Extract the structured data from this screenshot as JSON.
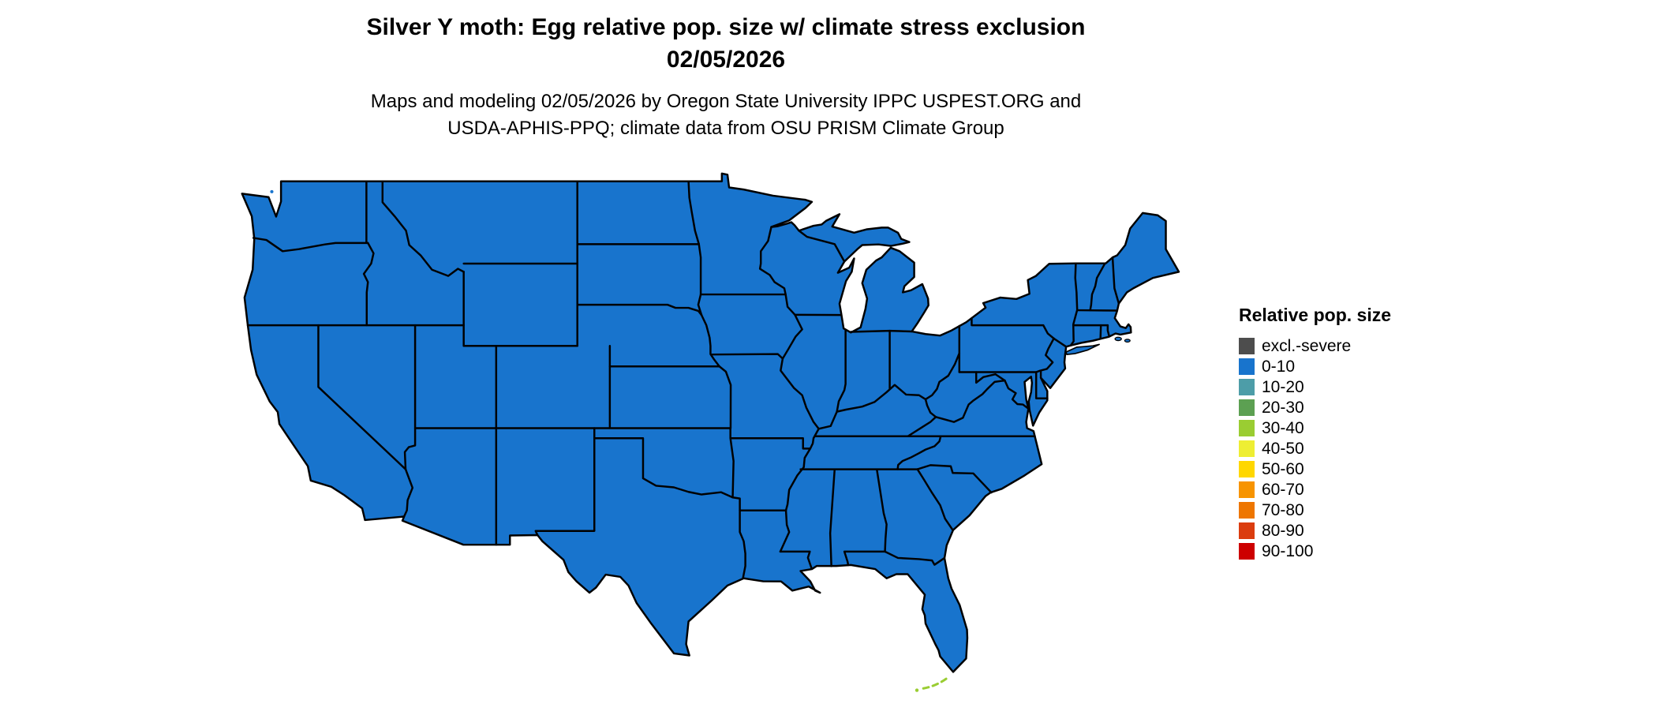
{
  "title": {
    "line1": "Silver Y moth: Egg relative pop. size w/ climate stress exclusion",
    "line2": "02/05/2026"
  },
  "subtitle": {
    "line1": "Maps and modeling 02/05/2026 by Oregon State University IPPC USPEST.ORG and",
    "line2": "USDA-APHIS-PPQ; climate data from OSU PRISM Climate Group"
  },
  "legend": {
    "title": "Relative pop. size",
    "items": [
      {
        "label": "excl.-severe",
        "color": "#4D4D4D"
      },
      {
        "label": "0-10",
        "color": "#1874CD"
      },
      {
        "label": "10-20",
        "color": "#4D9DA8"
      },
      {
        "label": "20-30",
        "color": "#5CA052"
      },
      {
        "label": "30-40",
        "color": "#9ACD32"
      },
      {
        "label": "40-50",
        "color": "#EEEE33"
      },
      {
        "label": "50-60",
        "color": "#FFD700"
      },
      {
        "label": "60-70",
        "color": "#F79400"
      },
      {
        "label": "70-80",
        "color": "#EE7600"
      },
      {
        "label": "80-90",
        "color": "#DB3D0F"
      },
      {
        "label": "90-100",
        "color": "#CD0000"
      }
    ]
  },
  "map": {
    "region": "Contiguous United States",
    "all_visible_class": "0-10",
    "land_fill": "#1874CD",
    "border_color": "#000000",
    "background": "#FFFFFF",
    "keys_speck_color": "#9ACD32"
  }
}
